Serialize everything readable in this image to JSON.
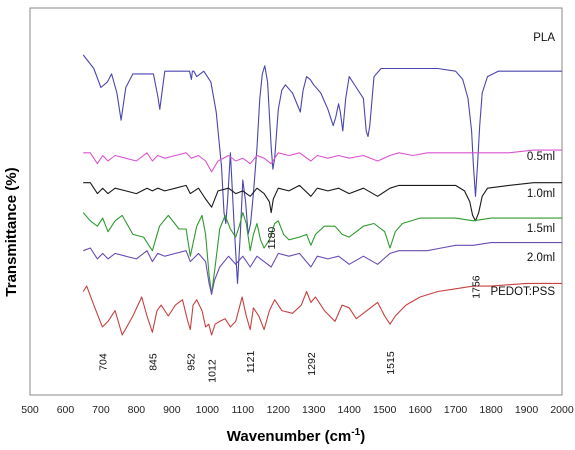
{
  "chart_data": {
    "type": "line",
    "title": "",
    "xlabel": "Wavenumber (cm-1)",
    "xlabel_base": "Wavenumber (cm",
    "xlabel_sup": "-1",
    "xlabel_close": ")",
    "ylabel": "Transmittance (%)",
    "xlim": [
      500,
      2000
    ],
    "x_ticks": [
      500,
      600,
      700,
      800,
      900,
      1000,
      1100,
      1200,
      1300,
      1400,
      1500,
      1600,
      1700,
      1800,
      1900,
      2000
    ],
    "grid": false,
    "y_axis_ticks": false,
    "legend": "series names printed at right end of each trace",
    "series": [
      {
        "name": "PLA",
        "color": "#4b45b0",
        "x": [
          650,
          680,
          700,
          718,
          730,
          745,
          757,
          770,
          790,
          820,
          848,
          860,
          866,
          872,
          880,
          900,
          930,
          950,
          955,
          958,
          962,
          970,
          990,
          1010,
          1025,
          1040,
          1047,
          1052,
          1057,
          1065,
          1075,
          1085,
          1093,
          1100,
          1108,
          1115,
          1122,
          1130,
          1140,
          1148,
          1155,
          1162,
          1170,
          1180,
          1185,
          1190,
          1200,
          1210,
          1220,
          1240,
          1262,
          1270,
          1280,
          1290,
          1300,
          1320,
          1340,
          1355,
          1362,
          1370,
          1375,
          1382,
          1390,
          1400,
          1420,
          1440,
          1448,
          1453,
          1458,
          1470,
          1490,
          1520,
          1550,
          1600,
          1650,
          1700,
          1720,
          1735,
          1745,
          1750,
          1756,
          1762,
          1768,
          1775,
          1790,
          1820,
          1900,
          2000
        ],
        "y": [
          96,
          91,
          84,
          86,
          89,
          82,
          72,
          84,
          89,
          89,
          89,
          81,
          76,
          82,
          90,
          90,
          90,
          90,
          87,
          90,
          90,
          88,
          90,
          86,
          75,
          55,
          38,
          34,
          42,
          60,
          35,
          12,
          30,
          50,
          42,
          30,
          34,
          45,
          62,
          80,
          89,
          92,
          86,
          62,
          54,
          58,
          76,
          83,
          85,
          82,
          75,
          83,
          88,
          87,
          85,
          82,
          76,
          70,
          73,
          78,
          75,
          68,
          80,
          88,
          84,
          80,
          68,
          66,
          70,
          88,
          91,
          91,
          91,
          91,
          91,
          90,
          87,
          80,
          68,
          56,
          44,
          56,
          70,
          82,
          88,
          90,
          90,
          90
        ]
      },
      {
        "name": "0.5ml",
        "color": "#d955d2",
        "x": [
          650,
          670,
          690,
          705,
          720,
          740,
          770,
          800,
          830,
          845,
          860,
          880,
          910,
          940,
          955,
          975,
          995,
          1012,
          1030,
          1060,
          1080,
          1100,
          1121,
          1140,
          1160,
          1180,
          1200,
          1230,
          1260,
          1292,
          1310,
          1340,
          1370,
          1400,
          1440,
          1480,
          1515,
          1540,
          1580,
          1620,
          1660,
          1700,
          1730,
          1745,
          1756,
          1768,
          1790,
          1850,
          1920,
          2000
        ],
        "y": [
          60,
          60,
          56,
          59,
          57,
          59,
          58,
          57,
          60,
          57,
          59,
          58,
          59,
          60,
          58,
          59,
          57,
          53,
          57,
          59,
          57,
          58,
          56,
          59,
          58,
          56,
          60,
          59,
          60,
          57,
          59,
          58,
          59,
          58,
          59,
          57,
          59,
          60,
          59,
          60,
          60,
          60,
          60,
          60,
          60,
          60,
          60,
          60,
          61,
          61
        ]
      },
      {
        "name": "1.0ml",
        "color": "#1a1a1a",
        "x": [
          650,
          670,
          690,
          705,
          720,
          740,
          770,
          800,
          830,
          845,
          860,
          880,
          910,
          940,
          952,
          975,
          995,
          1012,
          1030,
          1060,
          1080,
          1100,
          1121,
          1140,
          1160,
          1175,
          1180,
          1186,
          1200,
          1230,
          1260,
          1292,
          1310,
          1340,
          1370,
          1400,
          1440,
          1480,
          1515,
          1540,
          1580,
          1620,
          1660,
          1700,
          1725,
          1740,
          1748,
          1756,
          1765,
          1775,
          1790,
          1850,
          1920,
          2000
        ],
        "y": [
          49,
          49,
          45,
          47,
          45,
          47,
          46,
          45,
          47,
          46,
          47,
          46,
          47,
          48,
          45,
          47,
          43,
          40,
          46,
          47,
          45,
          46,
          44,
          47,
          45,
          42,
          38,
          43,
          47,
          46,
          48,
          44,
          47,
          46,
          47,
          45,
          47,
          44,
          47,
          48,
          48,
          48,
          48,
          48,
          46,
          42,
          37,
          35,
          38,
          44,
          47,
          48,
          49,
          49
        ]
      },
      {
        "name": "1.5ml",
        "color": "#2f9a2f",
        "x": [
          650,
          670,
          690,
          705,
          720,
          740,
          760,
          790,
          820,
          845,
          865,
          890,
          920,
          940,
          952,
          970,
          985,
          995,
          1005,
          1012,
          1022,
          1035,
          1050,
          1065,
          1080,
          1090,
          1100,
          1110,
          1121,
          1130,
          1140,
          1150,
          1160,
          1175,
          1190,
          1200,
          1215,
          1230,
          1260,
          1280,
          1292,
          1305,
          1330,
          1360,
          1380,
          1400,
          1420,
          1440,
          1470,
          1500,
          1515,
          1530,
          1550,
          1600,
          1650,
          1700,
          1750,
          1800,
          1900,
          2000
        ],
        "y": [
          38,
          35,
          33,
          36,
          31,
          35,
          37,
          30,
          29,
          24,
          33,
          37,
          32,
          32,
          22,
          33,
          37,
          30,
          15,
          8,
          18,
          32,
          37,
          32,
          29,
          33,
          38,
          34,
          24,
          30,
          34,
          28,
          25,
          28,
          34,
          35,
          30,
          28,
          29,
          30,
          26,
          30,
          33,
          33,
          30,
          29,
          31,
          33,
          34,
          31,
          25,
          31,
          34,
          36,
          36,
          36,
          35,
          36,
          36,
          36
        ]
      },
      {
        "name": "2.0ml",
        "color": "#6a4db3",
        "x": [
          650,
          670,
          690,
          705,
          720,
          740,
          770,
          800,
          830,
          845,
          860,
          880,
          910,
          940,
          952,
          975,
          995,
          1005,
          1012,
          1020,
          1035,
          1060,
          1080,
          1100,
          1121,
          1140,
          1160,
          1180,
          1200,
          1230,
          1260,
          1292,
          1310,
          1340,
          1370,
          1400,
          1440,
          1480,
          1515,
          1540,
          1580,
          1620,
          1660,
          1700,
          1750,
          1800,
          1900,
          2000
        ],
        "y": [
          24,
          25,
          21,
          23,
          21,
          23,
          22,
          21,
          24,
          20,
          23,
          22,
          23,
          24,
          20,
          23,
          20,
          12,
          8,
          13,
          18,
          22,
          19,
          22,
          18,
          22,
          20,
          18,
          23,
          22,
          23,
          18,
          22,
          21,
          22,
          19,
          22,
          19,
          23,
          24,
          24,
          24,
          25,
          26,
          26,
          27,
          27,
          27
        ]
      },
      {
        "name": "PEDOT:PSS",
        "color": "#c84040",
        "x": [
          650,
          660,
          680,
          704,
          720,
          740,
          760,
          790,
          815,
          830,
          845,
          858,
          870,
          890,
          910,
          930,
          945,
          952,
          960,
          970,
          985,
          995,
          1004,
          1012,
          1022,
          1035,
          1050,
          1065,
          1080,
          1090,
          1098,
          1110,
          1121,
          1130,
          1145,
          1160,
          1175,
          1190,
          1210,
          1240,
          1265,
          1280,
          1292,
          1305,
          1330,
          1360,
          1380,
          1400,
          1420,
          1450,
          1480,
          1500,
          1515,
          1530,
          1560,
          1600,
          1650,
          1700,
          1750,
          1800,
          1900,
          2000
        ],
        "y": [
          9,
          11,
          4,
          -4,
          -2,
          2,
          -7,
          0,
          7,
          0,
          -6,
          2,
          4,
          0,
          4,
          6,
          -2,
          -5,
          4,
          6,
          2,
          -4,
          -3,
          -7,
          -3,
          -2,
          -1,
          -4,
          -2,
          3,
          7,
          0,
          -5,
          3,
          0,
          -5,
          2,
          6,
          2,
          1,
          4,
          9,
          5,
          7,
          2,
          -2,
          4,
          3,
          -1,
          2,
          5,
          0,
          -3,
          0,
          4,
          7,
          9,
          10,
          11,
          11,
          12,
          12
        ]
      }
    ],
    "peak_labels": [
      {
        "text": "704",
        "x": 704
      },
      {
        "text": "845",
        "x": 845
      },
      {
        "text": "952",
        "x": 952
      },
      {
        "text": "1012",
        "x": 1012
      },
      {
        "text": "1121",
        "x": 1121
      },
      {
        "text": "1292",
        "x": 1292
      },
      {
        "text": "1515",
        "x": 1515
      },
      {
        "text": "1180",
        "x": 1180
      },
      {
        "text": "1756",
        "x": 1756
      }
    ]
  }
}
